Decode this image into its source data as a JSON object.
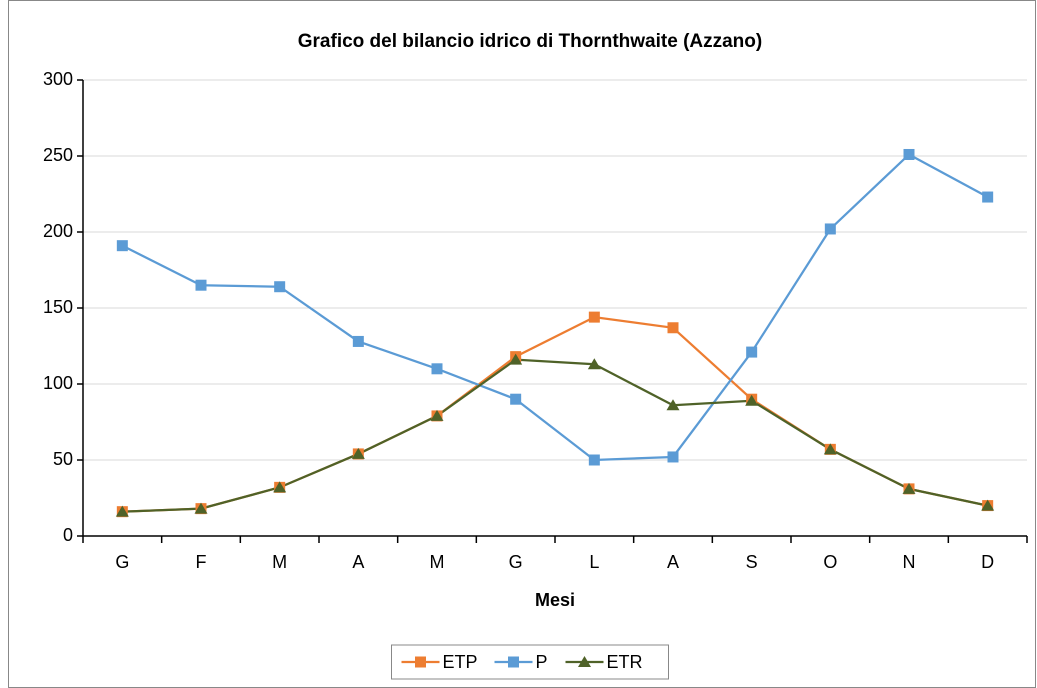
{
  "chart_data": {
    "type": "line",
    "title": "Grafico del bilancio idrico di Thornthwaite (Azzano)",
    "x_label": "Mesi",
    "categories": [
      "G",
      "F",
      "M",
      "A",
      "M",
      "G",
      "L",
      "A",
      "S",
      "O",
      "N",
      "D"
    ],
    "series": [
      {
        "name": "ETP",
        "color": "#ed7d31",
        "marker": "square",
        "values": [
          16,
          18,
          32,
          54,
          79,
          118,
          144,
          137,
          90,
          57,
          31,
          20
        ]
      },
      {
        "name": "P",
        "color": "#5b9bd5",
        "marker": "square",
        "values": [
          191,
          165,
          164,
          128,
          110,
          90,
          50,
          52,
          121,
          202,
          251,
          223
        ]
      },
      {
        "name": "ETR",
        "color": "#4f6228",
        "marker": "triangle",
        "values": [
          16,
          18,
          32,
          54,
          79,
          116,
          113,
          86,
          89,
          57,
          31,
          20
        ]
      }
    ],
    "ylim": [
      0,
      300
    ],
    "yticks": [
      0,
      50,
      100,
      150,
      200,
      250,
      300
    ],
    "grid": true,
    "legend": "bottom"
  }
}
